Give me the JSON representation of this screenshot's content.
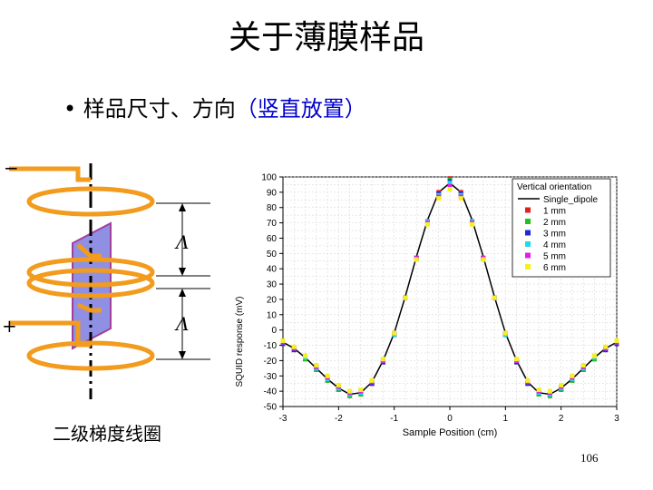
{
  "slide": {
    "title": "关于薄膜样品",
    "bullet_marker": "•",
    "bullet_text": "样品尺寸、方向",
    "bullet_paren": "（竖直放置）",
    "page_number": "106"
  },
  "coil_diagram": {
    "minus_label": "−",
    "plus_label": "+",
    "dim_label_top": "Λ",
    "dim_label_bottom": "Λ",
    "caption": "二级梯度线圈",
    "colors": {
      "coil": "#f29b1d",
      "sample": "#7b7bdf",
      "sample_edge": "#a0409a"
    }
  },
  "chart_data": {
    "type": "line",
    "xlabel": "Sample Position (cm)",
    "ylabel": "SQUID response (mV)",
    "xlim": [
      -3,
      3
    ],
    "ylim": [
      -50,
      100
    ],
    "xticks": [
      -3,
      -2,
      -1,
      0,
      1,
      2,
      3
    ],
    "yticks": [
      100,
      90,
      80,
      70,
      60,
      50,
      40,
      30,
      20,
      10,
      0,
      -10,
      -20,
      -30,
      -40,
      -50
    ],
    "grid": true,
    "legend_title": "Vertical orientation",
    "legend_position": "top-right",
    "x": [
      -3.0,
      -2.8,
      -2.6,
      -2.4,
      -2.2,
      -2.0,
      -1.8,
      -1.6,
      -1.4,
      -1.2,
      -1.0,
      -0.8,
      -0.6,
      -0.4,
      -0.2,
      0.0,
      0.2,
      0.4,
      0.6,
      0.8,
      1.0,
      1.2,
      1.4,
      1.6,
      1.8,
      2.0,
      2.2,
      2.4,
      2.6,
      2.8,
      3.0
    ],
    "series": [
      {
        "name": "Single_dipole",
        "kind": "line",
        "color": "#000000",
        "values": [
          -8,
          -12,
          -18,
          -25,
          -32,
          -38,
          -42,
          -41,
          -34,
          -20,
          -2,
          22,
          48,
          72,
          90,
          96,
          90,
          72,
          48,
          22,
          -2,
          -20,
          -34,
          -41,
          -42,
          -38,
          -32,
          -25,
          -18,
          -12,
          -8
        ]
      },
      {
        "name": "1 mm",
        "kind": "marker",
        "color": "#e02020",
        "values": [
          -9,
          -13,
          -19,
          -26,
          -33,
          -39,
          -43,
          -42,
          -35,
          -21,
          -3,
          21,
          47,
          71,
          90,
          99,
          90,
          71,
          47,
          21,
          -3,
          -21,
          -35,
          -42,
          -43,
          -39,
          -33,
          -26,
          -19,
          -13,
          -9
        ]
      },
      {
        "name": "2 mm",
        "kind": "marker",
        "color": "#20c020",
        "values": [
          -9,
          -13,
          -19,
          -26,
          -33,
          -39,
          -43,
          -42,
          -35,
          -21,
          -3,
          21,
          47,
          71,
          89,
          98,
          89,
          71,
          47,
          21,
          -3,
          -21,
          -35,
          -42,
          -43,
          -39,
          -33,
          -26,
          -19,
          -13,
          -9
        ]
      },
      {
        "name": "3 mm",
        "kind": "marker",
        "color": "#1a2ad8",
        "values": [
          -9,
          -13,
          -18,
          -25,
          -32,
          -38,
          -42,
          -41,
          -35,
          -21,
          -3,
          21,
          47,
          71,
          89,
          97,
          89,
          71,
          47,
          21,
          -3,
          -21,
          -35,
          -41,
          -42,
          -38,
          -32,
          -25,
          -18,
          -13,
          -9
        ]
      },
      {
        "name": "4 mm",
        "kind": "marker",
        "color": "#20d8e8",
        "values": [
          -8,
          -12,
          -18,
          -25,
          -32,
          -38,
          -42,
          -41,
          -34,
          -20,
          -3,
          21,
          47,
          71,
          88,
          96,
          88,
          71,
          47,
          21,
          -3,
          -20,
          -34,
          -41,
          -42,
          -38,
          -32,
          -25,
          -18,
          -12,
          -8
        ]
      },
      {
        "name": "5 mm",
        "kind": "marker",
        "color": "#e020e0",
        "values": [
          -8,
          -12,
          -17,
          -24,
          -31,
          -37,
          -41,
          -40,
          -34,
          -20,
          -2,
          21,
          47,
          70,
          87,
          94,
          87,
          70,
          47,
          21,
          -2,
          -20,
          -34,
          -40,
          -41,
          -37,
          -31,
          -24,
          -17,
          -12,
          -8
        ]
      },
      {
        "name": "6 mm",
        "kind": "marker",
        "color": "#f5f020",
        "values": [
          -7,
          -11,
          -17,
          -23,
          -30,
          -36,
          -40,
          -39,
          -33,
          -19,
          -2,
          21,
          46,
          69,
          86,
          92,
          86,
          69,
          46,
          21,
          -2,
          -19,
          -33,
          -39,
          -40,
          -36,
          -30,
          -23,
          -17,
          -11,
          -7
        ]
      }
    ]
  }
}
